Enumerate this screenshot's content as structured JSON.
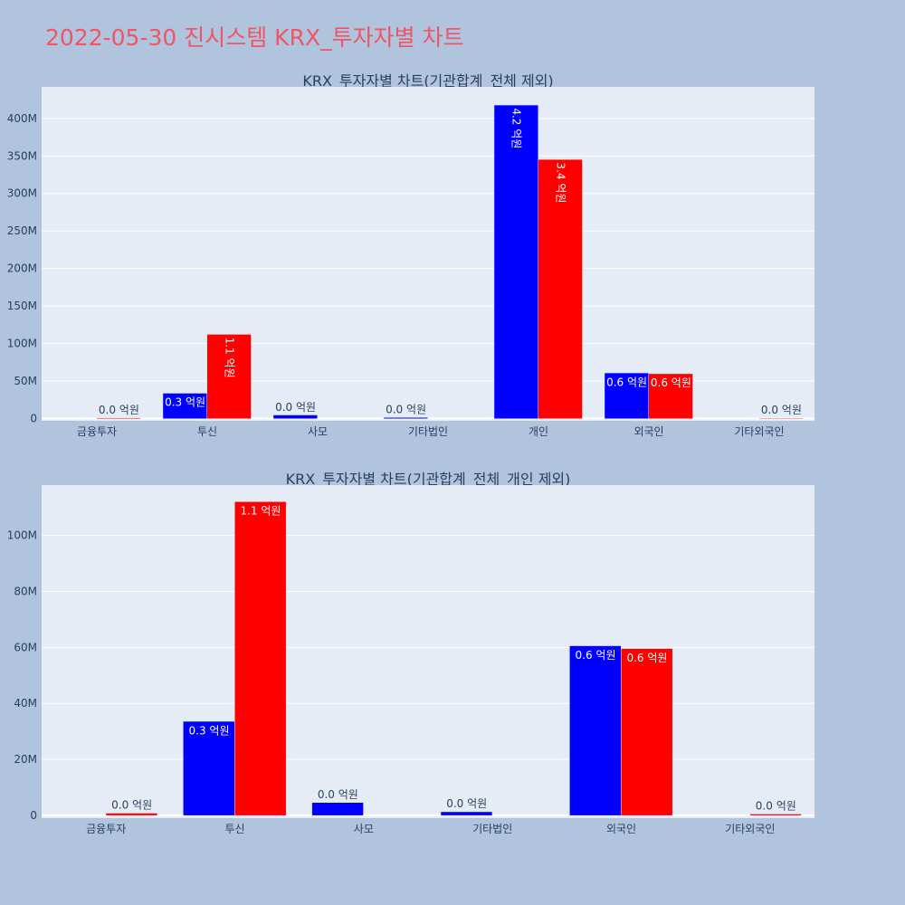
{
  "page_title": "2022-05-30 진시스템 KRX_투자자별 차트",
  "colors": {
    "background": "#b0c4de",
    "plot_background": "#e5ecf6",
    "series_1": "#0000ff",
    "series_2": "#ff0000",
    "title": "#ef5566"
  },
  "chart_data": [
    {
      "type": "bar",
      "title": "KRX_투자자별 차트(기관합계_전체 제외)",
      "categories": [
        "금융투자",
        "투신",
        "사모",
        "기타법인",
        "개인",
        "외국인",
        "기타외국인"
      ],
      "series": [
        {
          "color": "#0000ff",
          "values": [
            0,
            33500000,
            4500000,
            1200000,
            417500000,
            60500000,
            0
          ],
          "labels": [
            "",
            "0.3 억원",
            "0.0 억원",
            "0.0 억원",
            "4.2 억원",
            "0.6 억원",
            ""
          ]
        },
        {
          "color": "#ff0000",
          "values": [
            700000,
            112000000,
            0,
            0,
            345000000,
            59500000,
            400000
          ],
          "labels": [
            "0.0 억원",
            "1.1 억원",
            "",
            "",
            "3.4 억원",
            "0.6 억원",
            "0.0 억원"
          ]
        }
      ],
      "yticks": [
        "0",
        "50M",
        "100M",
        "150M",
        "200M",
        "250M",
        "300M",
        "350M",
        "400M"
      ],
      "ytick_values": [
        0,
        50000000,
        100000000,
        150000000,
        200000000,
        250000000,
        300000000,
        350000000,
        400000000
      ],
      "ylim": [
        -3000000,
        442000000
      ],
      "grid": true
    },
    {
      "type": "bar",
      "title": "KRX_투자자별 차트(기관합계_전체_개인 제외)",
      "categories": [
        "금융투자",
        "투신",
        "사모",
        "기타법인",
        "외국인",
        "기타외국인"
      ],
      "series": [
        {
          "color": "#0000ff",
          "values": [
            0,
            33500000,
            4500000,
            1200000,
            60500000,
            0
          ],
          "labels": [
            "",
            "0.3 억원",
            "0.0 억원",
            "0.0 억원",
            "0.6 억원",
            ""
          ]
        },
        {
          "color": "#ff0000",
          "values": [
            700000,
            112000000,
            0,
            0,
            59500000,
            400000
          ],
          "labels": [
            "0.0 억원",
            "1.1 억원",
            "",
            "",
            "0.6 억원",
            "0.0 억원"
          ]
        }
      ],
      "yticks": [
        "0",
        "20M",
        "40M",
        "60M",
        "80M",
        "100M"
      ],
      "ytick_values": [
        0,
        20000000,
        40000000,
        60000000,
        80000000,
        100000000
      ],
      "ylim": [
        -1000000,
        118000000
      ],
      "grid": true
    }
  ]
}
